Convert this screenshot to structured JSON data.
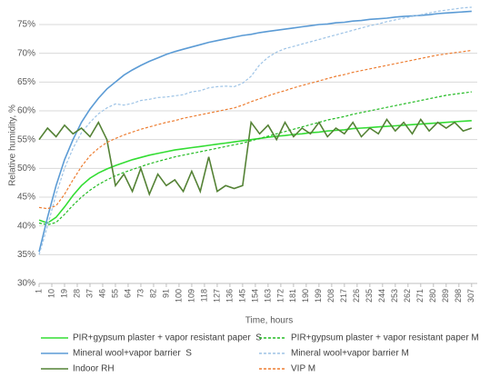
{
  "chart_data": {
    "type": "line",
    "xlabel": "Time, hours",
    "ylabel": "Relative humidity, %",
    "x": [
      1,
      7,
      13,
      19,
      25,
      31,
      37,
      43,
      49,
      55,
      61,
      67,
      73,
      79,
      85,
      91,
      97,
      103,
      109,
      115,
      121,
      127,
      133,
      139,
      145,
      151,
      157,
      163,
      169,
      175,
      181,
      187,
      193,
      199,
      205,
      211,
      217,
      223,
      229,
      235,
      241,
      247,
      253,
      259,
      265,
      271,
      277,
      283,
      289,
      295,
      301,
      307
    ],
    "xlim": [
      1,
      311
    ],
    "xticks": [
      1,
      10,
      19,
      28,
      37,
      46,
      55,
      64,
      73,
      82,
      91,
      100,
      109,
      118,
      127,
      136,
      145,
      154,
      163,
      172,
      181,
      190,
      199,
      208,
      217,
      226,
      235,
      244,
      253,
      262,
      271,
      280,
      289,
      298,
      307
    ],
    "ylim": [
      30,
      78
    ],
    "yticks": [
      {
        "value": 30,
        "label": "30%"
      },
      {
        "value": 35,
        "label": "35%"
      },
      {
        "value": 40,
        "label": "40%"
      },
      {
        "value": 45,
        "label": "45%"
      },
      {
        "value": 50,
        "label": "50%"
      },
      {
        "value": 55,
        "label": "55%"
      },
      {
        "value": 60,
        "label": "60%"
      },
      {
        "value": 65,
        "label": "65%"
      },
      {
        "value": 70,
        "label": "70%"
      },
      {
        "value": 75,
        "label": "75%"
      }
    ],
    "grid": true,
    "legend": "bottom",
    "series": [
      {
        "name": "PIR+gypsum plaster + vapor resistant paper  S",
        "color": "#33dd33",
        "style": "solid",
        "values": [
          41,
          40.5,
          41.5,
          43.3,
          45.3,
          47,
          48.3,
          49.2,
          49.9,
          50.5,
          51,
          51.5,
          51.9,
          52.3,
          52.6,
          52.9,
          53.2,
          53.4,
          53.6,
          53.8,
          54,
          54.2,
          54.4,
          54.6,
          54.8,
          55,
          55.2,
          55.4,
          55.6,
          55.7,
          55.9,
          56,
          56.2,
          56.3,
          56.5,
          56.6,
          56.7,
          56.9,
          57,
          57.1,
          57.2,
          57.3,
          57.4,
          57.5,
          57.6,
          57.7,
          57.8,
          57.9,
          58,
          58.1,
          58.2,
          58.3
        ]
      },
      {
        "name": "PIR+gypsum plaster + vapor resistant paper M",
        "color": "#22bb22",
        "style": "dashed",
        "values": [
          40.5,
          40.2,
          40.6,
          42,
          43.6,
          45,
          46.2,
          47.2,
          48,
          48.7,
          49.3,
          49.8,
          50.3,
          50.8,
          51.2,
          51.6,
          52,
          52.3,
          52.6,
          52.9,
          53.2,
          53.5,
          53.8,
          54.1,
          54.4,
          54.8,
          55.2,
          55.6,
          56,
          56.4,
          56.8,
          57.2,
          57.6,
          58,
          58.4,
          58.7,
          59,
          59.4,
          59.7,
          60,
          60.3,
          60.6,
          60.9,
          61.2,
          61.5,
          61.8,
          62.1,
          62.4,
          62.7,
          62.9,
          63.1,
          63.3
        ]
      },
      {
        "name": "Mineral wool+vapor barrier  S",
        "color": "#5b9bd5",
        "style": "solid",
        "values": [
          35.5,
          41.5,
          47,
          51.5,
          55,
          58,
          60.3,
          62.2,
          63.8,
          65,
          66.2,
          67.1,
          67.9,
          68.6,
          69.2,
          69.8,
          70.3,
          70.7,
          71.1,
          71.5,
          71.9,
          72.2,
          72.5,
          72.8,
          73.1,
          73.3,
          73.6,
          73.8,
          74,
          74.2,
          74.4,
          74.6,
          74.8,
          75,
          75.1,
          75.3,
          75.4,
          75.6,
          75.7,
          75.9,
          76,
          76.1,
          76.3,
          76.4,
          76.5,
          76.6,
          76.7,
          76.9,
          77,
          77.1,
          77.2,
          77.3
        ]
      },
      {
        "name": "Mineral wool+vapor barrier M",
        "color": "#9dc3e6",
        "style": "dashed",
        "values": [
          35,
          40,
          45.5,
          50,
          53.5,
          56.2,
          58,
          59.5,
          60.5,
          61.2,
          61,
          61.3,
          61.8,
          62,
          62.3,
          62.4,
          62.6,
          62.8,
          63.3,
          63.5,
          64,
          64.2,
          64.3,
          64.2,
          64.8,
          66,
          68,
          69.3,
          70.2,
          70.8,
          71.2,
          71.6,
          72,
          72.4,
          72.8,
          73.2,
          73.6,
          74,
          74.4,
          74.8,
          75.1,
          75.5,
          75.8,
          76.1,
          76.4,
          76.7,
          77,
          77.3,
          77.5,
          77.7,
          77.9,
          78
        ]
      },
      {
        "name": "Indoor RH",
        "color": "#548235",
        "style": "solid",
        "values": [
          55,
          57,
          55.5,
          57.5,
          56,
          57,
          55.5,
          58,
          55,
          47,
          49,
          46,
          50,
          45.5,
          49,
          47,
          48,
          46,
          49.5,
          46,
          52,
          46,
          47,
          46.5,
          47,
          58,
          56,
          57.5,
          55,
          58,
          55.5,
          57,
          56,
          58,
          55.5,
          57,
          56,
          58,
          55.5,
          57,
          56,
          58.5,
          56.5,
          58,
          56,
          58.5,
          56.5,
          58,
          57,
          58,
          56.5,
          57
        ]
      },
      {
        "name": "VIP M",
        "color": "#ed7d31",
        "style": "dashed",
        "values": [
          43.2,
          43,
          43.5,
          45.5,
          48,
          50.3,
          52.2,
          53.5,
          54.5,
          55.2,
          55.8,
          56.3,
          56.8,
          57.2,
          57.6,
          58,
          58.3,
          58.7,
          59,
          59.3,
          59.6,
          59.9,
          60.2,
          60.5,
          61,
          61.6,
          62.1,
          62.6,
          63.1,
          63.5,
          64,
          64.4,
          64.8,
          65.2,
          65.6,
          66,
          66.3,
          66.7,
          67,
          67.3,
          67.6,
          67.9,
          68.2,
          68.5,
          68.8,
          69.1,
          69.4,
          69.7,
          69.9,
          70.1,
          70.3,
          70.5
        ]
      }
    ]
  }
}
